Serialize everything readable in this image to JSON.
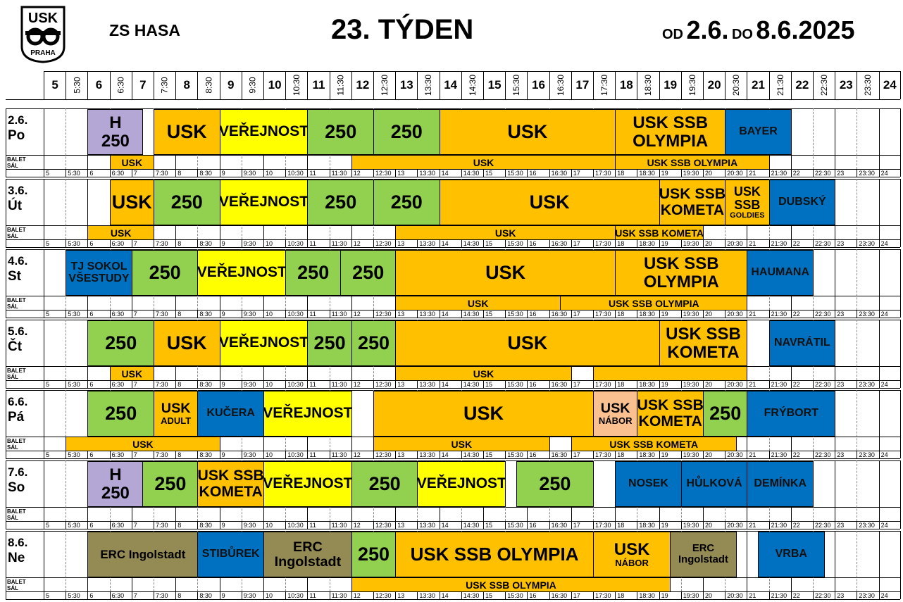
{
  "header": {
    "logo_top": "USK",
    "logo_bottom": "PRAHA",
    "venue": "ZS HASA",
    "week": "23. TÝDEN",
    "od": "OD",
    "date_from": "2.6.",
    "do": "DO",
    "date_to": "8.6.2025"
  },
  "hours": [
    "5",
    "5:30",
    "6",
    "6:30",
    "7",
    "7:30",
    "8",
    "8:30",
    "9",
    "9:30",
    "10",
    "10:30",
    "11",
    "11:30",
    "12",
    "12:30",
    "13",
    "13:30",
    "14",
    "14:30",
    "15",
    "15:30",
    "16",
    "16:30",
    "17",
    "17:30",
    "18",
    "18:30",
    "19",
    "19:30",
    "20",
    "20:30",
    "21",
    "21:30",
    "22",
    "22:30",
    "23",
    "23:30",
    "24"
  ],
  "balet_label": [
    "BALET",
    "SÁL"
  ],
  "colors": {
    "orange": "#FFC000",
    "green": "#92D050",
    "yellow": "#FFFF00",
    "blue": "#0070C0",
    "purple": "#B4A7D6",
    "olive": "#948A54",
    "peach": "#FAC090"
  },
  "days": [
    {
      "date": "2.6.",
      "name": "Po",
      "blocks": [
        {
          "s": 6,
          "e": 7.25,
          "c": "purple",
          "t": "H",
          "t2": "250"
        },
        {
          "s": 7.5,
          "e": 9,
          "c": "orange",
          "t": "USK"
        },
        {
          "s": 9,
          "e": 11,
          "c": "yellow",
          "t": "VEŘEJNOST"
        },
        {
          "s": 11,
          "e": 12.5,
          "c": "green",
          "t": "250"
        },
        {
          "s": 12.5,
          "e": 14,
          "c": "green",
          "t": "250"
        },
        {
          "s": 14,
          "e": 18,
          "c": "orange",
          "t": "USK"
        },
        {
          "s": 18,
          "e": 20.5,
          "c": "orange",
          "t": "USK SSB",
          "t2": "OLYMPIA"
        },
        {
          "s": 20.5,
          "e": 22,
          "c": "blue",
          "t": "BAYER"
        }
      ],
      "balet": [
        {
          "s": 6.5,
          "e": 7.5,
          "c": "orange",
          "t": "USK"
        },
        {
          "s": 12,
          "e": 18,
          "c": "orange",
          "t": "USK"
        },
        {
          "s": 18,
          "e": 21.5,
          "c": "orange",
          "t": "USK SSB OLYMPIA"
        }
      ]
    },
    {
      "date": "3.6.",
      "name": "Út",
      "blocks": [
        {
          "s": 6.5,
          "e": 7.5,
          "c": "orange",
          "t": "USK"
        },
        {
          "s": 7.5,
          "e": 9,
          "c": "green",
          "t": "250"
        },
        {
          "s": 9,
          "e": 11,
          "c": "yellow",
          "t": "VEŘEJNOST"
        },
        {
          "s": 11,
          "e": 12.5,
          "c": "green",
          "t": "250"
        },
        {
          "s": 12.5,
          "e": 14,
          "c": "green",
          "t": "250"
        },
        {
          "s": 14,
          "e": 19,
          "c": "orange",
          "t": "USK"
        },
        {
          "s": 19,
          "e": 20.5,
          "c": "orange",
          "t": "USK SSB",
          "t2": "KOMETA"
        },
        {
          "s": 20.5,
          "e": 21.5,
          "c": "orange",
          "t": "USK",
          "t2": "SSB",
          "t3": "GOLDIES"
        },
        {
          "s": 21.5,
          "e": 23,
          "c": "blue",
          "t": "DUBSKÝ"
        }
      ],
      "balet": [
        {
          "s": 6,
          "e": 7.5,
          "c": "orange",
          "t": "USK"
        },
        {
          "s": 13,
          "e": 18,
          "c": "orange",
          "t": "USK"
        },
        {
          "s": 18,
          "e": 20,
          "c": "orange",
          "t": "USK SSB KOMETA"
        }
      ]
    },
    {
      "date": "4.6.",
      "name": "St",
      "blocks": [
        {
          "s": 5.5,
          "e": 7,
          "c": "blue",
          "t": "TJ SOKOL",
          "t2": "VŠESTUDY"
        },
        {
          "s": 7,
          "e": 8.5,
          "c": "green",
          "t": "250"
        },
        {
          "s": 8.5,
          "e": 10.5,
          "c": "yellow",
          "t": "VEŘEJNOST"
        },
        {
          "s": 10.5,
          "e": 11.75,
          "c": "green",
          "t": "250"
        },
        {
          "s": 11.75,
          "e": 13,
          "c": "green",
          "t": "250"
        },
        {
          "s": 13,
          "e": 18,
          "c": "orange",
          "t": "USK"
        },
        {
          "s": 18,
          "e": 21,
          "c": "orange",
          "t": "USK SSB",
          "t2": "OLYMPIA"
        },
        {
          "s": 21,
          "e": 22.5,
          "c": "blue",
          "t": "HAUMANA"
        }
      ],
      "balet": [
        {
          "s": 13,
          "e": 16.75,
          "c": "orange",
          "t": "USK"
        },
        {
          "s": 16.75,
          "e": 21,
          "c": "orange",
          "t": "USK SSB OLYMPIA"
        }
      ]
    },
    {
      "date": "5.6.",
      "name": "Čt",
      "blocks": [
        {
          "s": 6,
          "e": 7.5,
          "c": "green",
          "t": "250"
        },
        {
          "s": 7.5,
          "e": 9,
          "c": "orange",
          "t": "USK"
        },
        {
          "s": 9,
          "e": 11,
          "c": "yellow",
          "t": "VEŘEJNOST"
        },
        {
          "s": 11,
          "e": 12,
          "c": "green",
          "t": "250"
        },
        {
          "s": 12,
          "e": 13,
          "c": "green",
          "t": "250"
        },
        {
          "s": 13,
          "e": 19,
          "c": "orange",
          "t": "USK"
        },
        {
          "s": 19,
          "e": 21,
          "c": "orange",
          "t": "USK SSB",
          "t2": "KOMETA"
        },
        {
          "s": 21.5,
          "e": 23,
          "c": "blue",
          "t": "NAVRÁTIL"
        }
      ],
      "balet": [
        {
          "s": 6.5,
          "e": 7.5,
          "c": "orange",
          "t": "USK"
        },
        {
          "s": 13,
          "e": 17,
          "c": "orange",
          "t": "USK"
        },
        {
          "s": 17.5,
          "e": 21,
          "c": "orange",
          "t": ""
        }
      ]
    },
    {
      "date": "6.6.",
      "name": "Pá",
      "blocks": [
        {
          "s": 6,
          "e": 7.5,
          "c": "green",
          "t": "250"
        },
        {
          "s": 7.5,
          "e": 8.5,
          "c": "orange",
          "t": "USK",
          "t2": "ADULT"
        },
        {
          "s": 8.5,
          "e": 10,
          "c": "blue",
          "t": "KUČERA"
        },
        {
          "s": 10,
          "e": 12,
          "c": "yellow",
          "t": "VEŘEJNOST"
        },
        {
          "s": 12.5,
          "e": 17.5,
          "c": "orange",
          "t": "USK"
        },
        {
          "s": 17.5,
          "e": 18.5,
          "c": "peach",
          "t": "USK",
          "t2": "NÁBOR"
        },
        {
          "s": 18.5,
          "e": 20,
          "c": "orange",
          "t": "USK SSB",
          "t2": "KOMETA"
        },
        {
          "s": 20,
          "e": 21,
          "c": "green",
          "t": "250"
        },
        {
          "s": 21,
          "e": 23,
          "c": "blue",
          "t": "FRÝBORT"
        }
      ],
      "balet": [
        {
          "s": 5.5,
          "e": 9,
          "c": "orange",
          "t": "USK"
        },
        {
          "s": 12.5,
          "e": 16.5,
          "c": "orange",
          "t": "USK"
        },
        {
          "s": 17,
          "e": 20.75,
          "c": "orange",
          "t": "USK SSB KOMETA"
        }
      ]
    },
    {
      "date": "7.6.",
      "name": "So",
      "blocks": [
        {
          "s": 6,
          "e": 7.25,
          "c": "purple",
          "t": "H",
          "t2": "250"
        },
        {
          "s": 7.25,
          "e": 8.5,
          "c": "green",
          "t": "250"
        },
        {
          "s": 8.5,
          "e": 10,
          "c": "orange",
          "t": "USK SSB",
          "t2": "KOMETA"
        },
        {
          "s": 10,
          "e": 12,
          "c": "yellow",
          "t": "VEŘEJNOST"
        },
        {
          "s": 12,
          "e": 13.5,
          "c": "green",
          "t": "250"
        },
        {
          "s": 13.5,
          "e": 15.5,
          "c": "yellow",
          "t": "VEŘEJNOST"
        },
        {
          "s": 15.75,
          "e": 17.5,
          "c": "green",
          "t": "250"
        },
        {
          "s": 18,
          "e": 19.5,
          "c": "blue",
          "t": "NOSEK"
        },
        {
          "s": 19.5,
          "e": 21,
          "c": "blue",
          "t": "HŮLKOVÁ"
        },
        {
          "s": 21,
          "e": 22.5,
          "c": "blue",
          "t": "DEMÍNKA"
        }
      ],
      "balet": []
    },
    {
      "date": "8.6.",
      "name": "Ne",
      "blocks": [
        {
          "s": 6,
          "e": 8.5,
          "c": "olive",
          "t": "ERC Ingolstadt"
        },
        {
          "s": 8.5,
          "e": 10,
          "c": "blue",
          "t": "STIBŮREK"
        },
        {
          "s": 10,
          "e": 12,
          "c": "olive",
          "t": "ERC",
          "t2": "Ingolstadt"
        },
        {
          "s": 12,
          "e": 13,
          "c": "green",
          "t": "250"
        },
        {
          "s": 13,
          "e": 17.5,
          "c": "orange",
          "t": "USK SSB OLYMPIA"
        },
        {
          "s": 17.5,
          "e": 19.25,
          "c": "orange",
          "t": "USK",
          "t2": "NÁBOR"
        },
        {
          "s": 19.25,
          "e": 20.75,
          "c": "olive",
          "t": "ERC",
          "t2": "Ingolstadt"
        },
        {
          "s": 21.25,
          "e": 22.75,
          "c": "blue",
          "t": "VRBA"
        }
      ],
      "balet": [
        {
          "s": 12,
          "e": 19.25,
          "c": "orange",
          "t": "USK SSB OLYMPIA"
        }
      ]
    }
  ]
}
